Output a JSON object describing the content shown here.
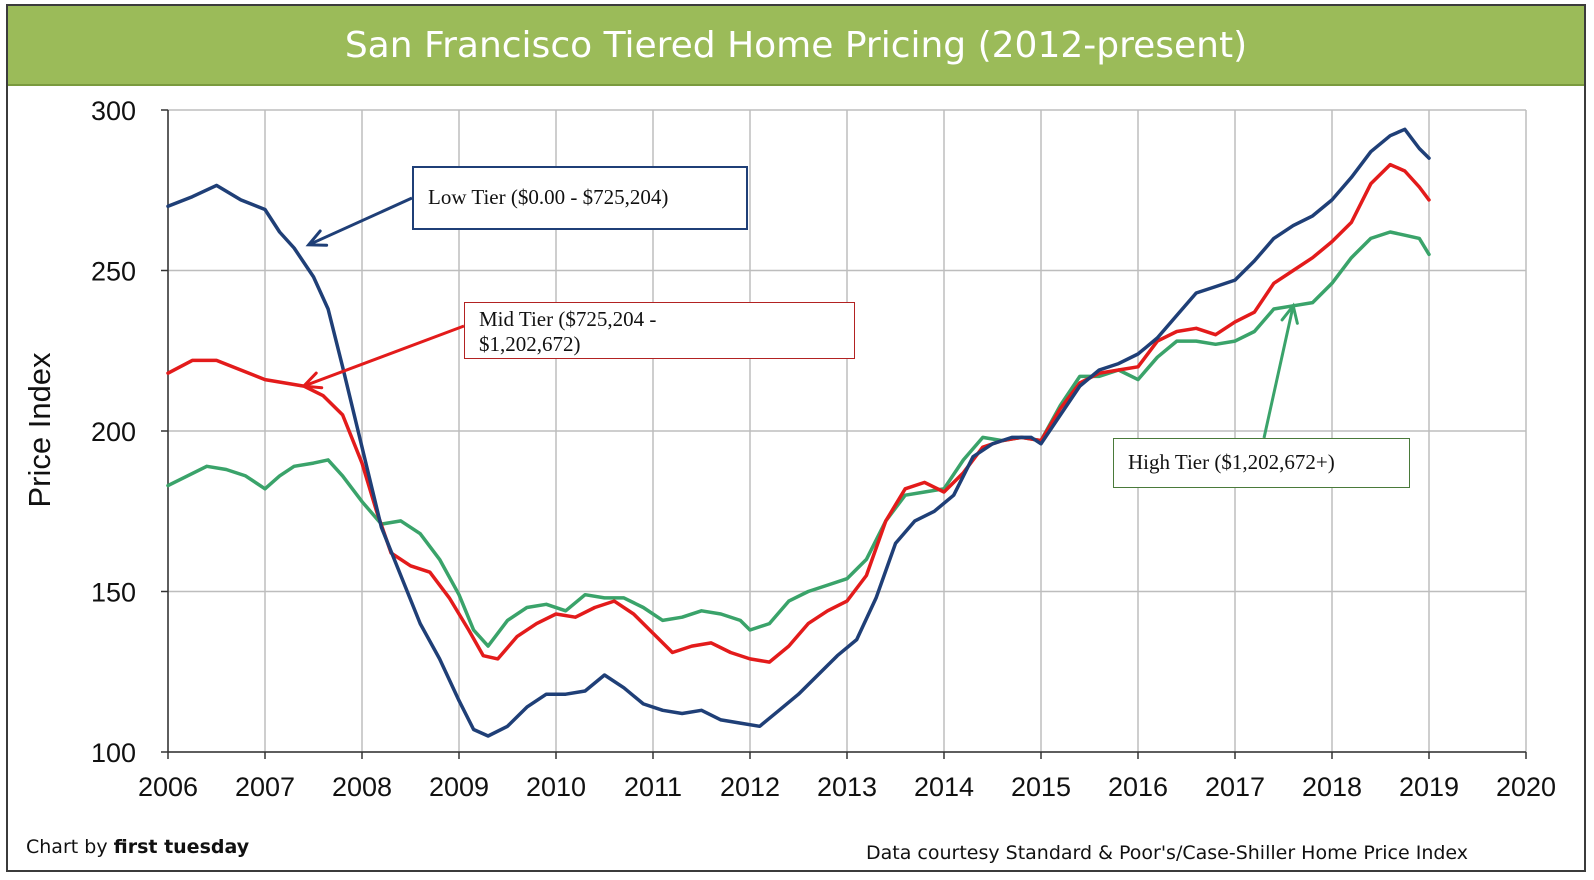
{
  "chart_data": {
    "type": "line",
    "title": "San Francisco Tiered Home Pricing (2012-present)",
    "xlabel": "",
    "ylabel": "Price Index",
    "xlim": [
      2006,
      2020
    ],
    "ylim": [
      100,
      300
    ],
    "x_ticks": [
      "2006",
      "2007",
      "2008",
      "2009",
      "2010",
      "2011",
      "2012",
      "2013",
      "2014",
      "2015",
      "2016",
      "2017",
      "2018",
      "2019",
      "2020"
    ],
    "y_ticks": [
      "100",
      "150",
      "200",
      "250",
      "300"
    ],
    "grid": true,
    "series": [
      {
        "name": "Low Tier ($0.00 - $725,204)",
        "color": "#1f3f77",
        "points": [
          [
            2006.0,
            270
          ],
          [
            2006.25,
            273
          ],
          [
            2006.5,
            276.5
          ],
          [
            2006.75,
            272
          ],
          [
            2007.0,
            269
          ],
          [
            2007.15,
            262
          ],
          [
            2007.3,
            257
          ],
          [
            2007.5,
            248
          ],
          [
            2007.65,
            238
          ],
          [
            2007.8,
            220
          ],
          [
            2008.0,
            195
          ],
          [
            2008.2,
            170
          ],
          [
            2008.4,
            155
          ],
          [
            2008.6,
            140
          ],
          [
            2008.8,
            129
          ],
          [
            2009.0,
            116
          ],
          [
            2009.15,
            107
          ],
          [
            2009.3,
            105
          ],
          [
            2009.5,
            108
          ],
          [
            2009.7,
            114
          ],
          [
            2009.9,
            118
          ],
          [
            2010.1,
            118
          ],
          [
            2010.3,
            119
          ],
          [
            2010.5,
            124
          ],
          [
            2010.7,
            120
          ],
          [
            2010.9,
            115
          ],
          [
            2011.1,
            113
          ],
          [
            2011.3,
            112
          ],
          [
            2011.5,
            113
          ],
          [
            2011.7,
            110
          ],
          [
            2011.9,
            109
          ],
          [
            2012.1,
            108
          ],
          [
            2012.3,
            113
          ],
          [
            2012.5,
            118
          ],
          [
            2012.7,
            124
          ],
          [
            2012.9,
            130
          ],
          [
            2013.1,
            135
          ],
          [
            2013.3,
            148
          ],
          [
            2013.5,
            165
          ],
          [
            2013.7,
            172
          ],
          [
            2013.9,
            175
          ],
          [
            2014.1,
            180
          ],
          [
            2014.3,
            192
          ],
          [
            2014.5,
            196
          ],
          [
            2014.7,
            198
          ],
          [
            2014.9,
            198
          ],
          [
            2015.0,
            196
          ],
          [
            2015.2,
            205
          ],
          [
            2015.4,
            214
          ],
          [
            2015.6,
            219
          ],
          [
            2015.8,
            221
          ],
          [
            2016.0,
            224
          ],
          [
            2016.2,
            229
          ],
          [
            2016.4,
            236
          ],
          [
            2016.6,
            243
          ],
          [
            2016.8,
            245
          ],
          [
            2017.0,
            247
          ],
          [
            2017.2,
            253
          ],
          [
            2017.4,
            260
          ],
          [
            2017.6,
            264
          ],
          [
            2017.8,
            267
          ],
          [
            2018.0,
            272
          ],
          [
            2018.2,
            279
          ],
          [
            2018.4,
            287
          ],
          [
            2018.6,
            292
          ],
          [
            2018.75,
            294
          ],
          [
            2018.9,
            288
          ],
          [
            2019.0,
            285
          ]
        ]
      },
      {
        "name": "Mid Tier ($725,204 - $1,202,672)",
        "color": "#e31b1b",
        "points": [
          [
            2006.0,
            218
          ],
          [
            2006.25,
            222
          ],
          [
            2006.5,
            222
          ],
          [
            2006.75,
            219
          ],
          [
            2007.0,
            216
          ],
          [
            2007.2,
            215
          ],
          [
            2007.4,
            214
          ],
          [
            2007.6,
            211
          ],
          [
            2007.8,
            205
          ],
          [
            2008.0,
            190
          ],
          [
            2008.15,
            175
          ],
          [
            2008.3,
            162
          ],
          [
            2008.5,
            158
          ],
          [
            2008.7,
            156
          ],
          [
            2008.9,
            148
          ],
          [
            2009.1,
            138
          ],
          [
            2009.25,
            130
          ],
          [
            2009.4,
            129
          ],
          [
            2009.6,
            136
          ],
          [
            2009.8,
            140
          ],
          [
            2010.0,
            143
          ],
          [
            2010.2,
            142
          ],
          [
            2010.4,
            145
          ],
          [
            2010.6,
            147
          ],
          [
            2010.8,
            143
          ],
          [
            2011.0,
            137
          ],
          [
            2011.2,
            131
          ],
          [
            2011.4,
            133
          ],
          [
            2011.6,
            134
          ],
          [
            2011.8,
            131
          ],
          [
            2012.0,
            129
          ],
          [
            2012.2,
            128
          ],
          [
            2012.4,
            133
          ],
          [
            2012.6,
            140
          ],
          [
            2012.8,
            144
          ],
          [
            2013.0,
            147
          ],
          [
            2013.2,
            155
          ],
          [
            2013.4,
            172
          ],
          [
            2013.6,
            182
          ],
          [
            2013.8,
            184
          ],
          [
            2014.0,
            181
          ],
          [
            2014.2,
            187
          ],
          [
            2014.4,
            195
          ],
          [
            2014.6,
            197
          ],
          [
            2014.8,
            198
          ],
          [
            2015.0,
            197
          ],
          [
            2015.2,
            207
          ],
          [
            2015.4,
            215
          ],
          [
            2015.6,
            218
          ],
          [
            2015.8,
            219
          ],
          [
            2016.0,
            220
          ],
          [
            2016.2,
            228
          ],
          [
            2016.4,
            231
          ],
          [
            2016.6,
            232
          ],
          [
            2016.8,
            230
          ],
          [
            2017.0,
            234
          ],
          [
            2017.2,
            237
          ],
          [
            2017.4,
            246
          ],
          [
            2017.6,
            250
          ],
          [
            2017.8,
            254
          ],
          [
            2018.0,
            259
          ],
          [
            2018.2,
            265
          ],
          [
            2018.4,
            277
          ],
          [
            2018.6,
            283
          ],
          [
            2018.75,
            281
          ],
          [
            2018.9,
            276
          ],
          [
            2019.0,
            272
          ]
        ]
      },
      {
        "name": "High Tier ($1,202,672+)",
        "color": "#3aa36a",
        "points": [
          [
            2006.0,
            183
          ],
          [
            2006.2,
            186
          ],
          [
            2006.4,
            189
          ],
          [
            2006.6,
            188
          ],
          [
            2006.8,
            186
          ],
          [
            2007.0,
            182
          ],
          [
            2007.15,
            186
          ],
          [
            2007.3,
            189
          ],
          [
            2007.5,
            190
          ],
          [
            2007.65,
            191
          ],
          [
            2007.8,
            186
          ],
          [
            2008.0,
            178
          ],
          [
            2008.2,
            171
          ],
          [
            2008.4,
            172
          ],
          [
            2008.6,
            168
          ],
          [
            2008.8,
            160
          ],
          [
            2009.0,
            149
          ],
          [
            2009.15,
            138
          ],
          [
            2009.3,
            133
          ],
          [
            2009.5,
            141
          ],
          [
            2009.7,
            145
          ],
          [
            2009.9,
            146
          ],
          [
            2010.1,
            144
          ],
          [
            2010.3,
            149
          ],
          [
            2010.5,
            148
          ],
          [
            2010.7,
            148
          ],
          [
            2010.9,
            145
          ],
          [
            2011.1,
            141
          ],
          [
            2011.3,
            142
          ],
          [
            2011.5,
            144
          ],
          [
            2011.7,
            143
          ],
          [
            2011.9,
            141
          ],
          [
            2012.0,
            138
          ],
          [
            2012.2,
            140
          ],
          [
            2012.4,
            147
          ],
          [
            2012.6,
            150
          ],
          [
            2012.8,
            152
          ],
          [
            2013.0,
            154
          ],
          [
            2013.2,
            160
          ],
          [
            2013.4,
            172
          ],
          [
            2013.6,
            180
          ],
          [
            2013.8,
            181
          ],
          [
            2014.0,
            182
          ],
          [
            2014.2,
            191
          ],
          [
            2014.4,
            198
          ],
          [
            2014.6,
            197
          ],
          [
            2014.8,
            198
          ],
          [
            2015.0,
            197
          ],
          [
            2015.2,
            208
          ],
          [
            2015.4,
            217
          ],
          [
            2015.6,
            217
          ],
          [
            2015.8,
            219
          ],
          [
            2016.0,
            216
          ],
          [
            2016.2,
            223
          ],
          [
            2016.4,
            228
          ],
          [
            2016.6,
            228
          ],
          [
            2016.8,
            227
          ],
          [
            2017.0,
            228
          ],
          [
            2017.2,
            231
          ],
          [
            2017.4,
            238
          ],
          [
            2017.6,
            239
          ],
          [
            2017.8,
            240
          ],
          [
            2018.0,
            246
          ],
          [
            2018.2,
            254
          ],
          [
            2018.4,
            260
          ],
          [
            2018.6,
            262
          ],
          [
            2018.75,
            261
          ],
          [
            2018.9,
            260
          ],
          [
            2019.0,
            255
          ]
        ]
      }
    ],
    "annotations": [
      {
        "text": "Low Tier ($0.00 - $725,204)",
        "series": 0
      },
      {
        "text": "Mid Tier ($725,204 - $1,202,672)",
        "line1": "Mid Tier ($725,204 -",
        "line2": "$1,202,672)",
        "series": 1
      },
      {
        "text": "High Tier ($1,202,672+)",
        "series": 2
      }
    ]
  },
  "footer": {
    "left_prefix": "Chart by ",
    "left_brand": "first tuesday",
    "right": "Data courtesy Standard & Poor's/Case-Shiller Home Price Index"
  }
}
